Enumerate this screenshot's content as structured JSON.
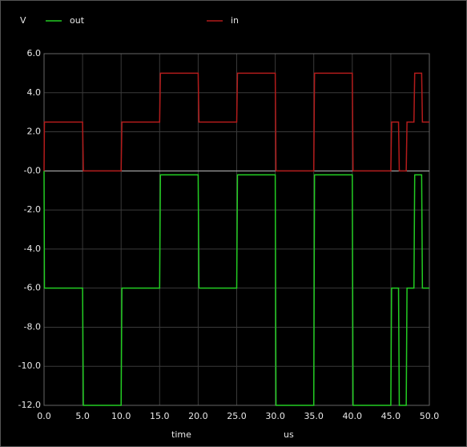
{
  "chart_data": {
    "type": "line",
    "ylabel": "V",
    "xlabel": "time",
    "xunit": "us",
    "x": [
      0,
      0.05,
      5,
      5.1,
      10,
      10.1,
      15,
      15.1,
      20,
      20.1,
      25,
      25.1,
      30,
      30.1,
      35,
      35.1,
      40,
      40.1,
      45,
      45.1,
      46,
      46.1,
      47,
      47.1,
      48,
      48.1,
      49,
      49.1,
      50
    ],
    "series": [
      {
        "name": "out",
        "color": "#22cc22",
        "values": [
          0,
          -6,
          -6,
          -12,
          -12,
          -6,
          -6,
          -0.2,
          -0.2,
          -6,
          -6,
          -0.2,
          -0.2,
          -12,
          -12,
          -0.2,
          -0.2,
          -12,
          -12,
          -6,
          -6,
          -12,
          -12,
          -6,
          -6,
          -0.2,
          -0.2,
          -6,
          -6
        ]
      },
      {
        "name": "in",
        "color": "#b31b1b",
        "values": [
          0,
          2.5,
          2.5,
          0,
          0,
          2.5,
          2.5,
          5,
          5,
          2.5,
          2.5,
          5,
          5,
          0,
          0,
          5,
          5,
          0,
          0,
          2.5,
          2.5,
          0,
          0,
          2.5,
          2.5,
          5,
          5,
          2.5,
          2.5
        ]
      }
    ],
    "xlim": [
      0,
      50
    ],
    "xticks": [
      {
        "value": 0,
        "label": "0.0"
      },
      {
        "value": 5,
        "label": "5.0"
      },
      {
        "value": 10,
        "label": "10.0"
      },
      {
        "value": 15,
        "label": "15.0"
      },
      {
        "value": 20,
        "label": "20.0"
      },
      {
        "value": 25,
        "label": "25.0"
      },
      {
        "value": 30,
        "label": "30.0"
      },
      {
        "value": 35,
        "label": "35.0"
      },
      {
        "value": 40,
        "label": "40.0"
      },
      {
        "value": 45,
        "label": "45.0"
      },
      {
        "value": 50,
        "label": "50.0"
      }
    ],
    "ylim": [
      -12,
      6
    ],
    "yticks": [
      {
        "value": 6,
        "label": "6.0"
      },
      {
        "value": 4,
        "label": "4.0"
      },
      {
        "value": 2,
        "label": "2.0"
      },
      {
        "value": 0,
        "label": "-0.0"
      },
      {
        "value": -2,
        "label": "-2.0"
      },
      {
        "value": -4,
        "label": "-4.0"
      },
      {
        "value": -6,
        "label": "-6.0"
      },
      {
        "value": -8,
        "label": "-8.0"
      },
      {
        "value": -10,
        "label": "-10.0"
      },
      {
        "value": -12,
        "label": "-12.0"
      }
    ],
    "grid": true
  }
}
